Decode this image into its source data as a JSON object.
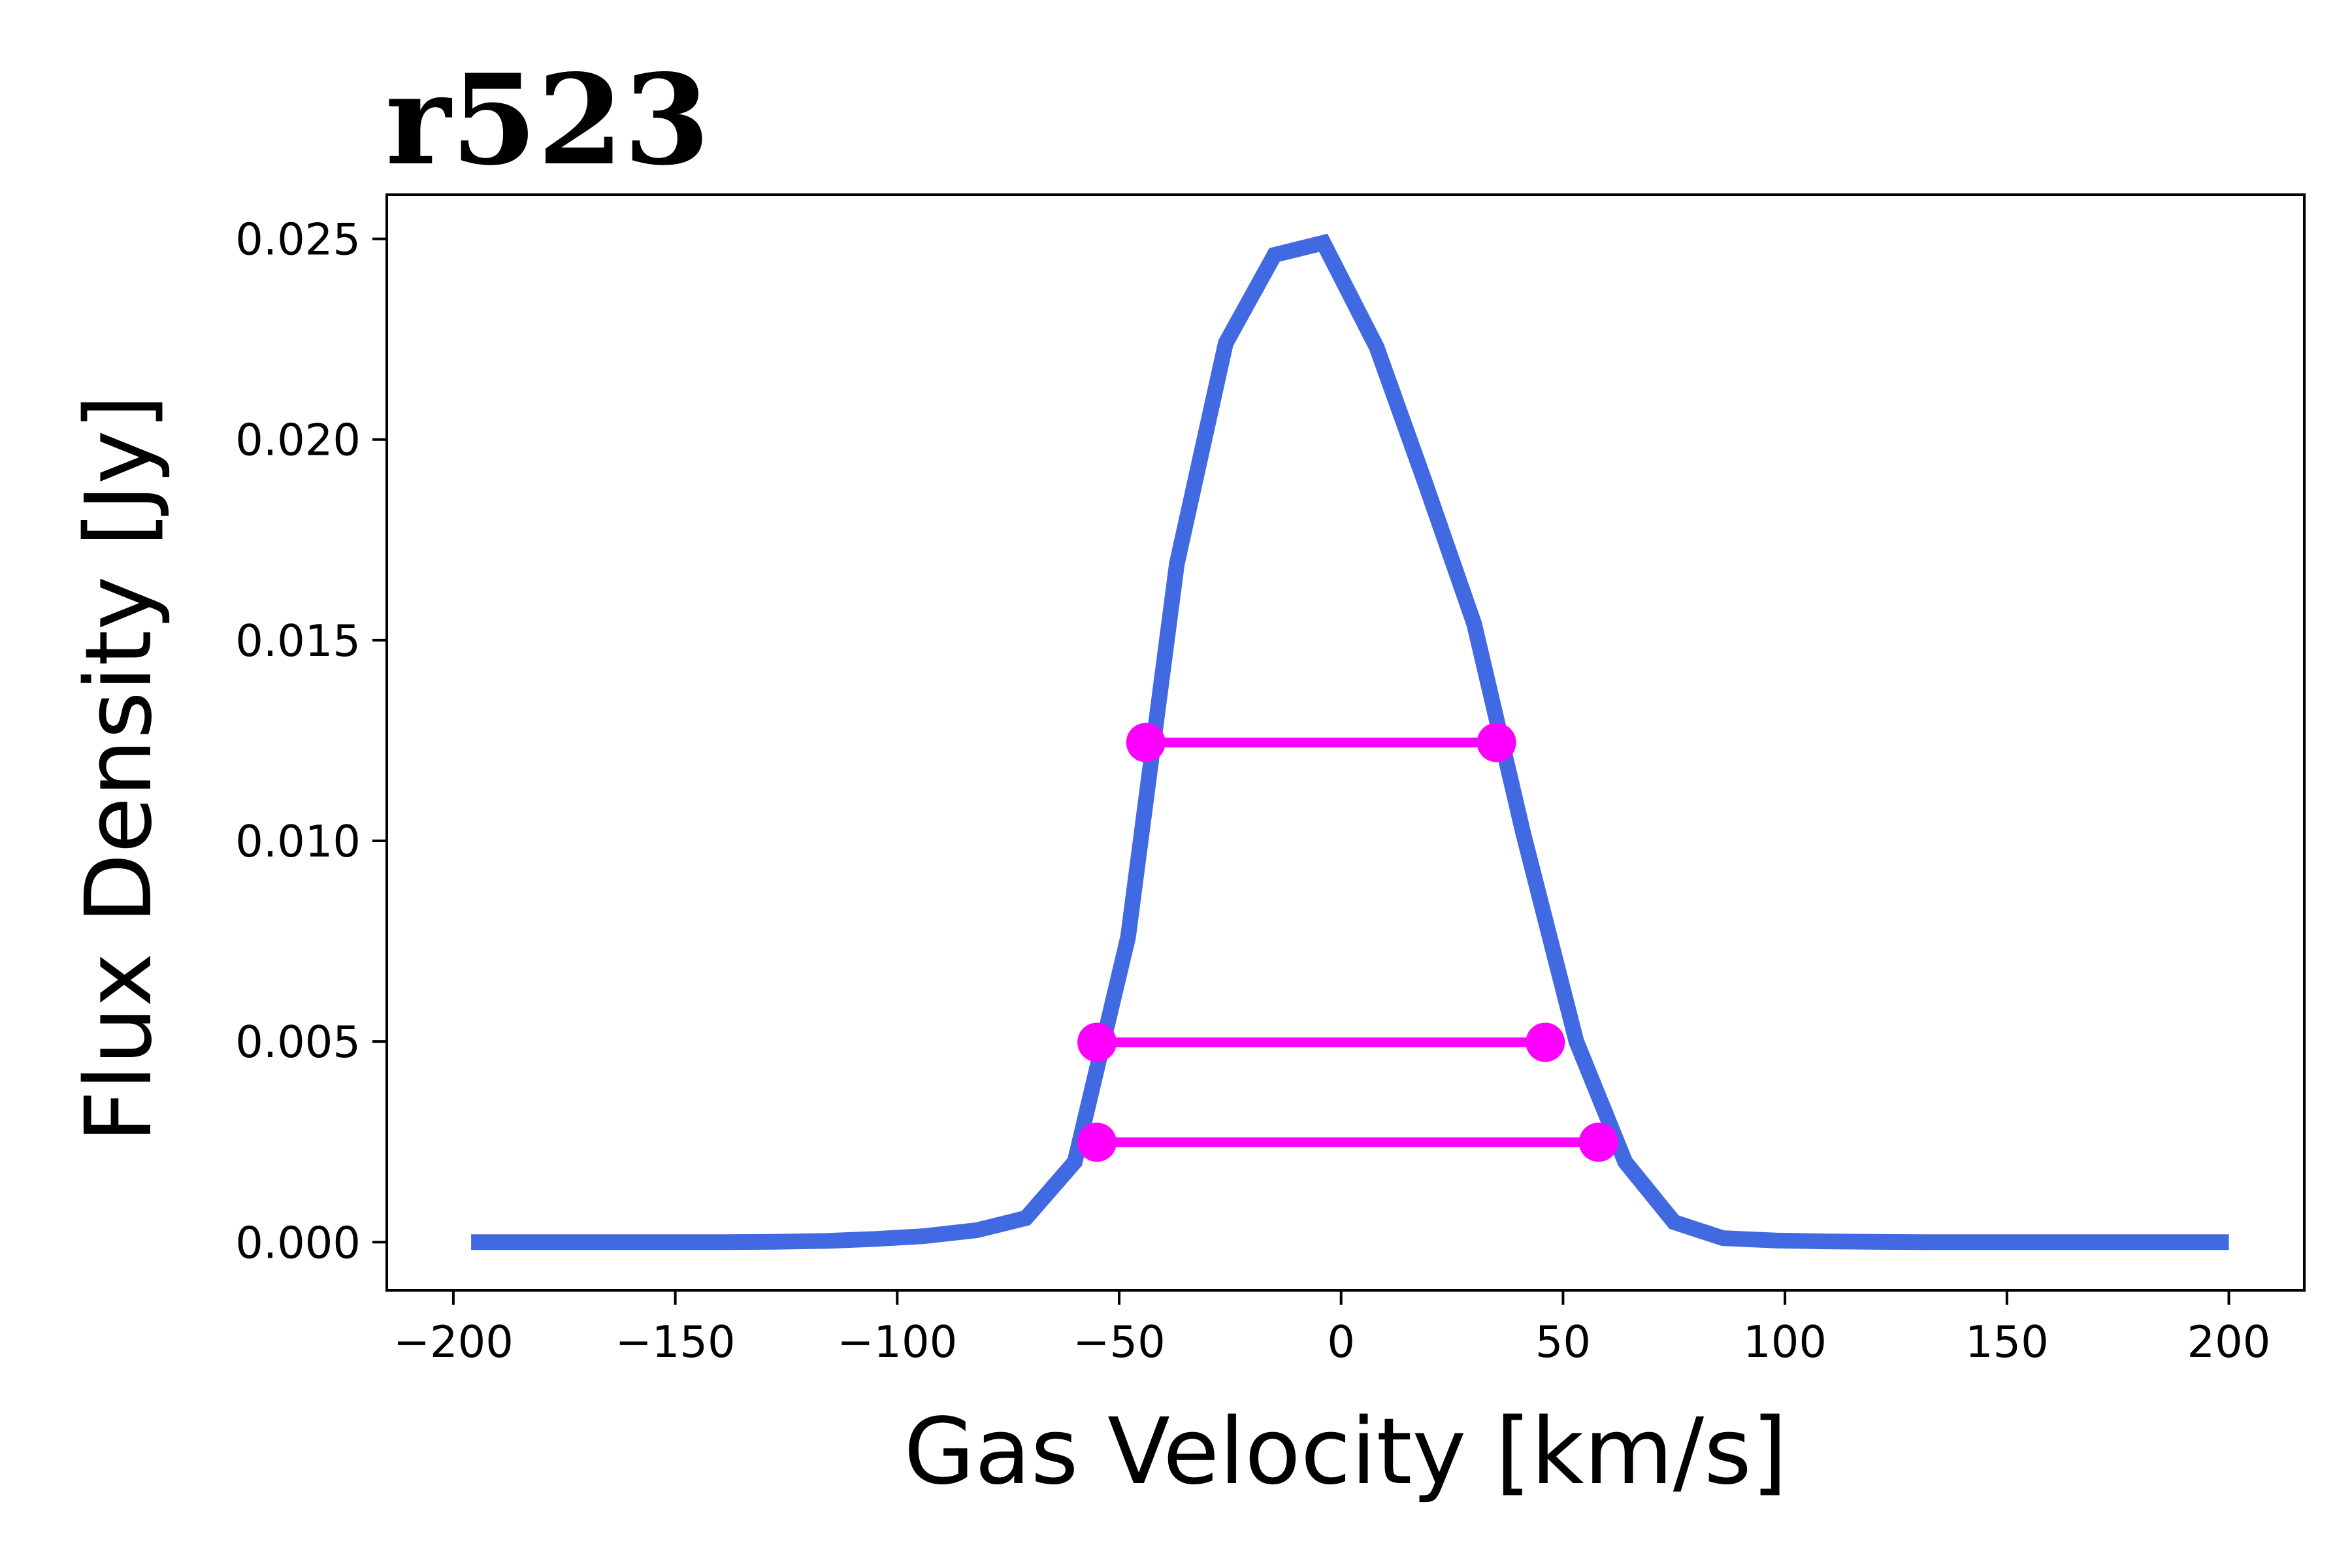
{
  "chart_data": {
    "type": "line",
    "title": "r523",
    "xlabel": "Gas Velocity [km/s]",
    "ylabel": "Flux Density [Jy]",
    "xlim": [
      -215,
      217
    ],
    "ylim": [
      -0.0012,
      0.0261
    ],
    "xticks": [
      -200,
      -150,
      -100,
      -50,
      0,
      50,
      100,
      150,
      200
    ],
    "xtick_labels": [
      "−200",
      "−150",
      "−100",
      "−50",
      "0",
      "50",
      "100",
      "150",
      "200"
    ],
    "yticks": [
      0.0,
      0.005,
      0.01,
      0.015,
      0.02,
      0.025
    ],
    "ytick_labels": [
      "0.000",
      "0.005",
      "0.010",
      "0.015",
      "0.020",
      "0.025"
    ],
    "grid": false,
    "series": [
      {
        "color": "#4169E1",
        "x": [
          -196,
          -185,
          -173,
          -162,
          -150,
          -139,
          -128,
          -116,
          -105,
          -94,
          -82,
          -71,
          -60,
          -48,
          -37,
          -26,
          -15,
          -4,
          8,
          19,
          30,
          41,
          53,
          64,
          75,
          86,
          98,
          109,
          120,
          132,
          143,
          154,
          166,
          177,
          188,
          200
        ],
        "y": [
          0.0,
          0.0,
          0.0,
          0.0,
          0.0,
          0.0,
          1e-05,
          3e-05,
          8e-05,
          0.00015,
          0.0003,
          0.0006,
          0.002,
          0.0076,
          0.0169,
          0.0224,
          0.0246,
          0.0249,
          0.0223,
          0.0189,
          0.0154,
          0.0102,
          0.005,
          0.002,
          0.0005,
          0.0001,
          4e-05,
          2e-05,
          1e-05,
          0.0,
          0.0,
          0.0,
          0.0,
          0.0,
          0.0,
          0.0
        ]
      }
    ],
    "width_markers": [
      {
        "color": "#FF00FF",
        "level": 0.01245,
        "x_left": -44,
        "x_right": 35
      },
      {
        "color": "#FF00FF",
        "level": 0.00498,
        "x_left": -55,
        "x_right": 46
      },
      {
        "color": "#FF00FF",
        "level": 0.00249,
        "x_left": -55,
        "x_right": 58
      }
    ]
  }
}
